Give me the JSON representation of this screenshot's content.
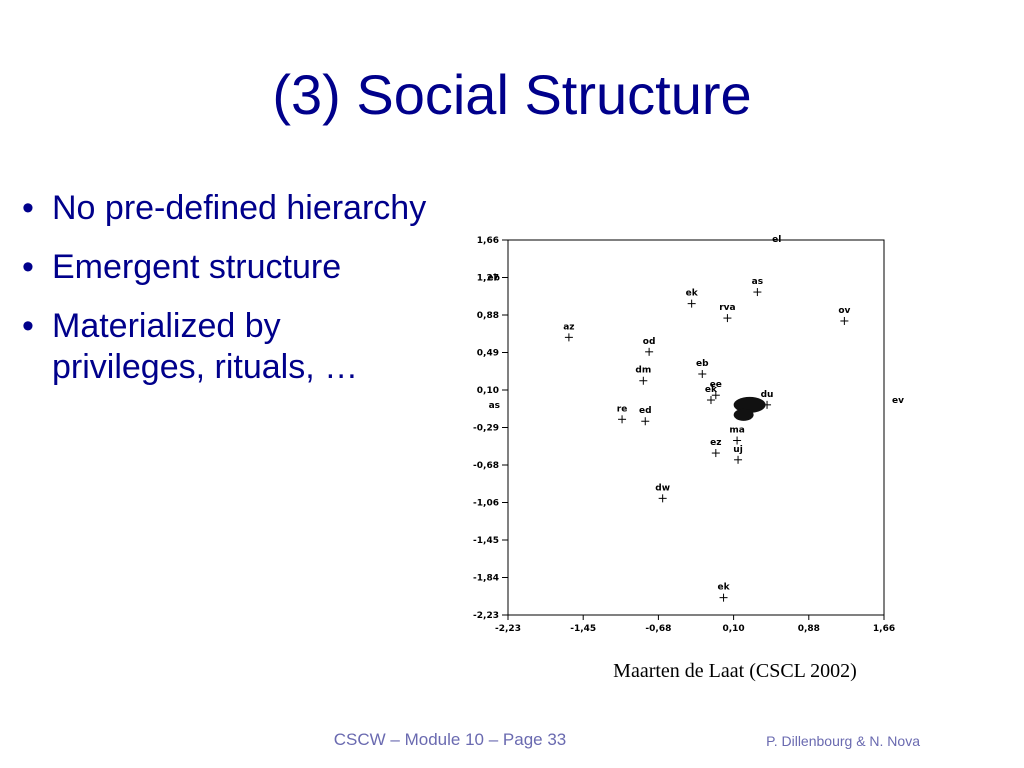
{
  "slide": {
    "title": "(3) Social Structure",
    "bullets": [
      "No pre-defined hierarchy",
      "Emergent structure",
      "Materialized by privileges, rituals, …"
    ],
    "caption": "Maarten de Laat (CSCL 2002)",
    "footer_center": "CSCW – Module 10 – Page 33",
    "footer_right": "P. Dillenbourg & N. Nova"
  },
  "chart_data": {
    "type": "scatter",
    "xlim": [
      -2.23,
      1.66
    ],
    "ylim": [
      -2.23,
      1.66
    ],
    "x_ticks": [
      "-2,23",
      "-1,45",
      "-0,68",
      "0,10",
      "0,88",
      "1,66"
    ],
    "y_ticks": [
      "1,66",
      "1,27",
      "0,88",
      "0,49",
      "0,10",
      "-0,29",
      "-0,68",
      "-1,06",
      "-1,45",
      "-1,84",
      "-2,23"
    ],
    "grid": false,
    "marker": "+",
    "points": [
      {
        "label": "el",
        "x": 0.55,
        "y": 1.66,
        "marker": false
      },
      {
        "label": "eb",
        "x": -2.23,
        "y": 1.27,
        "marker": false
      },
      {
        "label": "as",
        "x": 0.35,
        "y": 1.12
      },
      {
        "label": "ek",
        "x": -0.33,
        "y": 1.0
      },
      {
        "label": "rva",
        "x": 0.04,
        "y": 0.85
      },
      {
        "label": "ov",
        "x": 1.25,
        "y": 0.82
      },
      {
        "label": "az",
        "x": -1.6,
        "y": 0.65
      },
      {
        "label": "od",
        "x": -0.77,
        "y": 0.5
      },
      {
        "label": "dm",
        "x": -0.83,
        "y": 0.2
      },
      {
        "label": "eb",
        "x": -0.22,
        "y": 0.27
      },
      {
        "label": "ek",
        "x": -0.13,
        "y": 0.0
      },
      {
        "label": "ee",
        "x": -0.08,
        "y": 0.05
      },
      {
        "label": "du",
        "x": 0.45,
        "y": -0.05
      },
      {
        "label": "re",
        "x": -1.05,
        "y": -0.2
      },
      {
        "label": "ed",
        "x": -0.81,
        "y": -0.22
      },
      {
        "label": "ez",
        "x": -0.08,
        "y": -0.55
      },
      {
        "label": "ma",
        "x": 0.14,
        "y": -0.42
      },
      {
        "label": "uj",
        "x": 0.15,
        "y": -0.62
      },
      {
        "label": "dw",
        "x": -0.63,
        "y": -1.02
      },
      {
        "label": "ek",
        "x": -0.0,
        "y": -2.05
      },
      {
        "label": "ev",
        "x": 1.66,
        "y": 0.0,
        "marker": false
      },
      {
        "label": "as",
        "x": -2.23,
        "y": -0.05,
        "marker": false
      }
    ]
  }
}
